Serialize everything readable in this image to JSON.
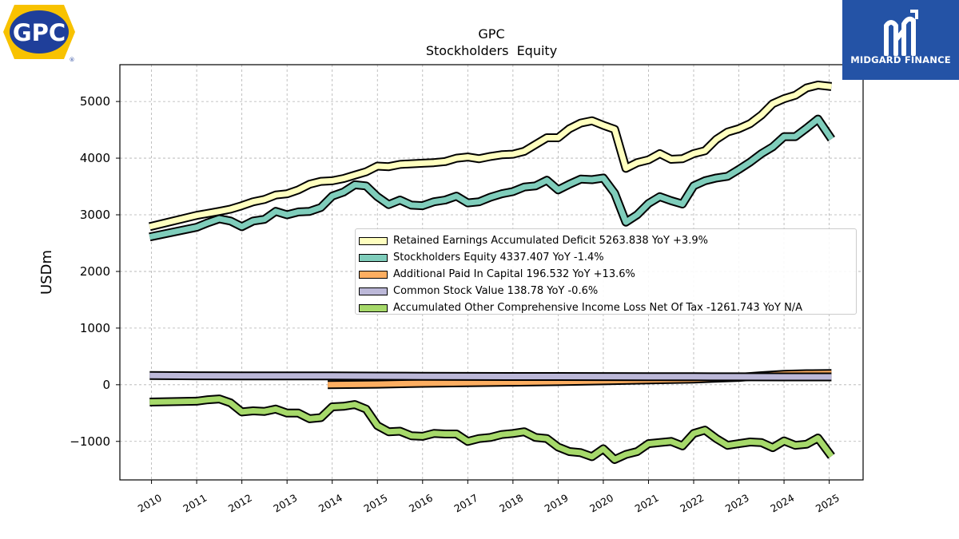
{
  "header": {
    "ticker": "GPC",
    "subtitle": "Stockholders  Equity"
  },
  "logos": {
    "company": "GPC",
    "company_mark": "®",
    "brand": "MIDGARD FINANCE"
  },
  "colors": {
    "retained": "#ffffbf",
    "equity": "#7fcdbb",
    "apic": "#fdae61",
    "common": "#bcb8d8",
    "aoci": "#a6d96a",
    "brand_bg": "#2453a6",
    "logo_yellow": "#f8c200",
    "logo_blue": "#1f3f9a"
  },
  "chart_data": {
    "type": "line",
    "ylabel": "USDm",
    "xlim": [
      2009.3,
      2025.75
    ],
    "ylim": [
      -1680,
      5650
    ],
    "yticks": [
      -1000,
      0,
      1000,
      2000,
      3000,
      4000,
      5000
    ],
    "ytick_labels": [
      "−1000",
      "0",
      "1000",
      "2000",
      "3000",
      "4000",
      "5000"
    ],
    "xticks": [
      2010,
      2011,
      2012,
      2013,
      2014,
      2015,
      2016,
      2017,
      2018,
      2019,
      2020,
      2021,
      2022,
      2023,
      2024,
      2025
    ],
    "xtick_labels": [
      "2010",
      "2011",
      "2012",
      "2013",
      "2014",
      "2015",
      "2016",
      "2017",
      "2018",
      "2019",
      "2020",
      "2021",
      "2022",
      "2023",
      "2024",
      "2025"
    ],
    "grid": true,
    "legend_position": "center-right",
    "series": [
      {
        "name": "Retained Earnings Accumulated Deficit",
        "legend": "Retained Earnings Accumulated Deficit  5263.838 YoY +3.9%",
        "color_key": "retained",
        "points": [
          [
            2009.96,
            2790
          ],
          [
            2011.0,
            2990
          ],
          [
            2011.5,
            3060
          ],
          [
            2011.75,
            3100
          ],
          [
            2012.0,
            3160
          ],
          [
            2012.25,
            3230
          ],
          [
            2012.5,
            3270
          ],
          [
            2012.75,
            3350
          ],
          [
            2013.0,
            3370
          ],
          [
            2013.25,
            3440
          ],
          [
            2013.5,
            3540
          ],
          [
            2013.75,
            3590
          ],
          [
            2014.0,
            3600
          ],
          [
            2014.25,
            3640
          ],
          [
            2014.5,
            3700
          ],
          [
            2014.75,
            3760
          ],
          [
            2015.0,
            3860
          ],
          [
            2015.25,
            3850
          ],
          [
            2015.5,
            3890
          ],
          [
            2015.75,
            3900
          ],
          [
            2016.0,
            3910
          ],
          [
            2016.25,
            3920
          ],
          [
            2016.5,
            3940
          ],
          [
            2016.75,
            4000
          ],
          [
            2017.0,
            4020
          ],
          [
            2017.25,
            3990
          ],
          [
            2017.5,
            4030
          ],
          [
            2017.75,
            4060
          ],
          [
            2018.0,
            4070
          ],
          [
            2018.25,
            4120
          ],
          [
            2018.5,
            4240
          ],
          [
            2018.75,
            4360
          ],
          [
            2019.0,
            4360
          ],
          [
            2019.25,
            4520
          ],
          [
            2019.5,
            4620
          ],
          [
            2019.75,
            4660
          ],
          [
            2020.0,
            4580
          ],
          [
            2020.25,
            4510
          ],
          [
            2020.5,
            3820
          ],
          [
            2020.75,
            3920
          ],
          [
            2021.0,
            3970
          ],
          [
            2021.25,
            4080
          ],
          [
            2021.5,
            3980
          ],
          [
            2021.75,
            3990
          ],
          [
            2022.0,
            4080
          ],
          [
            2022.25,
            4130
          ],
          [
            2022.5,
            4330
          ],
          [
            2022.75,
            4460
          ],
          [
            2023.0,
            4520
          ],
          [
            2023.25,
            4610
          ],
          [
            2023.5,
            4760
          ],
          [
            2023.75,
            4960
          ],
          [
            2024.0,
            5050
          ],
          [
            2024.25,
            5110
          ],
          [
            2024.5,
            5240
          ],
          [
            2024.75,
            5290
          ],
          [
            2025.05,
            5264
          ]
        ]
      },
      {
        "name": "Stockholders Equity",
        "legend": "Stockholders Equity  4337.407 YoY -1.4%",
        "color_key": "equity",
        "points": [
          [
            2009.96,
            2610
          ],
          [
            2011.0,
            2780
          ],
          [
            2011.25,
            2860
          ],
          [
            2011.5,
            2930
          ],
          [
            2011.75,
            2890
          ],
          [
            2012.0,
            2790
          ],
          [
            2012.25,
            2890
          ],
          [
            2012.5,
            2920
          ],
          [
            2012.75,
            3060
          ],
          [
            2013.0,
            3000
          ],
          [
            2013.25,
            3050
          ],
          [
            2013.5,
            3060
          ],
          [
            2013.75,
            3130
          ],
          [
            2014.0,
            3330
          ],
          [
            2014.25,
            3400
          ],
          [
            2014.5,
            3530
          ],
          [
            2014.75,
            3510
          ],
          [
            2015.0,
            3320
          ],
          [
            2015.25,
            3180
          ],
          [
            2015.5,
            3260
          ],
          [
            2015.75,
            3170
          ],
          [
            2016.0,
            3160
          ],
          [
            2016.25,
            3230
          ],
          [
            2016.5,
            3260
          ],
          [
            2016.75,
            3330
          ],
          [
            2017.0,
            3210
          ],
          [
            2017.25,
            3230
          ],
          [
            2017.5,
            3310
          ],
          [
            2017.75,
            3370
          ],
          [
            2018.0,
            3410
          ],
          [
            2018.25,
            3490
          ],
          [
            2018.5,
            3510
          ],
          [
            2018.75,
            3610
          ],
          [
            2019.0,
            3440
          ],
          [
            2019.25,
            3540
          ],
          [
            2019.5,
            3630
          ],
          [
            2019.75,
            3620
          ],
          [
            2020.0,
            3650
          ],
          [
            2020.25,
            3380
          ],
          [
            2020.5,
            2870
          ],
          [
            2020.75,
            3000
          ],
          [
            2021.0,
            3200
          ],
          [
            2021.25,
            3320
          ],
          [
            2021.5,
            3250
          ],
          [
            2021.75,
            3190
          ],
          [
            2022.0,
            3510
          ],
          [
            2022.25,
            3600
          ],
          [
            2022.5,
            3650
          ],
          [
            2022.75,
            3680
          ],
          [
            2023.0,
            3800
          ],
          [
            2023.25,
            3930
          ],
          [
            2023.5,
            4080
          ],
          [
            2023.75,
            4200
          ],
          [
            2024.0,
            4380
          ],
          [
            2024.25,
            4380
          ],
          [
            2024.5,
            4530
          ],
          [
            2024.75,
            4690
          ],
          [
            2025.05,
            4337
          ]
        ]
      },
      {
        "name": "Additional Paid In Capital",
        "legend": "Additional Paid In Capital  196.532 YoY +13.6%",
        "color_key": "apic",
        "points": [
          [
            2013.9,
            0
          ],
          [
            2015.0,
            10
          ],
          [
            2016.0,
            25
          ],
          [
            2017.0,
            35
          ],
          [
            2018.0,
            45
          ],
          [
            2019.0,
            55
          ],
          [
            2020.0,
            70
          ],
          [
            2021.0,
            85
          ],
          [
            2022.0,
            100
          ],
          [
            2023.0,
            130
          ],
          [
            2023.5,
            160
          ],
          [
            2024.0,
            185
          ],
          [
            2024.5,
            195
          ],
          [
            2025.05,
            197
          ]
        ]
      },
      {
        "name": "Common Stock Value",
        "legend": "Common Stock Value  138.78 YoY -0.6%",
        "color_key": "common",
        "points": [
          [
            2009.96,
            163
          ],
          [
            2011.0,
            158
          ],
          [
            2012.0,
            157
          ],
          [
            2013.0,
            156
          ],
          [
            2014.0,
            155
          ],
          [
            2015.0,
            153
          ],
          [
            2016.0,
            150
          ],
          [
            2017.0,
            147
          ],
          [
            2018.0,
            146
          ],
          [
            2019.0,
            145
          ],
          [
            2020.0,
            144
          ],
          [
            2021.0,
            143
          ],
          [
            2022.0,
            141
          ],
          [
            2023.0,
            140
          ],
          [
            2024.0,
            139
          ],
          [
            2025.05,
            139
          ]
        ]
      },
      {
        "name": "Accumulated Other Comprehensive Income Loss Net Of Tax",
        "legend": "Accumulated Other Comprehensive Income Loss Net Of Tax  -1261.743 YoY N/A",
        "color_key": "aoci",
        "points": [
          [
            2009.96,
            -305
          ],
          [
            2011.0,
            -290
          ],
          [
            2011.25,
            -265
          ],
          [
            2011.5,
            -250
          ],
          [
            2011.75,
            -320
          ],
          [
            2012.0,
            -480
          ],
          [
            2012.25,
            -460
          ],
          [
            2012.5,
            -470
          ],
          [
            2012.75,
            -430
          ],
          [
            2013.0,
            -500
          ],
          [
            2013.25,
            -500
          ],
          [
            2013.5,
            -600
          ],
          [
            2013.75,
            -580
          ],
          [
            2014.0,
            -390
          ],
          [
            2014.25,
            -380
          ],
          [
            2014.5,
            -350
          ],
          [
            2014.75,
            -430
          ],
          [
            2015.0,
            -720
          ],
          [
            2015.25,
            -830
          ],
          [
            2015.5,
            -820
          ],
          [
            2015.75,
            -900
          ],
          [
            2016.0,
            -910
          ],
          [
            2016.25,
            -860
          ],
          [
            2016.5,
            -870
          ],
          [
            2016.75,
            -870
          ],
          [
            2017.0,
            -1000
          ],
          [
            2017.25,
            -950
          ],
          [
            2017.5,
            -930
          ],
          [
            2017.75,
            -880
          ],
          [
            2018.0,
            -860
          ],
          [
            2018.25,
            -830
          ],
          [
            2018.5,
            -930
          ],
          [
            2018.75,
            -950
          ],
          [
            2019.0,
            -1100
          ],
          [
            2019.25,
            -1180
          ],
          [
            2019.5,
            -1200
          ],
          [
            2019.75,
            -1270
          ],
          [
            2020.0,
            -1130
          ],
          [
            2020.25,
            -1320
          ],
          [
            2020.5,
            -1230
          ],
          [
            2020.75,
            -1180
          ],
          [
            2021.0,
            -1040
          ],
          [
            2021.25,
            -1020
          ],
          [
            2021.5,
            -1000
          ],
          [
            2021.75,
            -1080
          ],
          [
            2022.0,
            -860
          ],
          [
            2022.25,
            -800
          ],
          [
            2022.5,
            -950
          ],
          [
            2022.75,
            -1070
          ],
          [
            2023.0,
            -1040
          ],
          [
            2023.25,
            -1010
          ],
          [
            2023.5,
            -1020
          ],
          [
            2023.75,
            -1110
          ],
          [
            2024.0,
            -990
          ],
          [
            2024.25,
            -1070
          ],
          [
            2024.5,
            -1050
          ],
          [
            2024.75,
            -940
          ],
          [
            2025.05,
            -1262
          ]
        ]
      }
    ]
  }
}
